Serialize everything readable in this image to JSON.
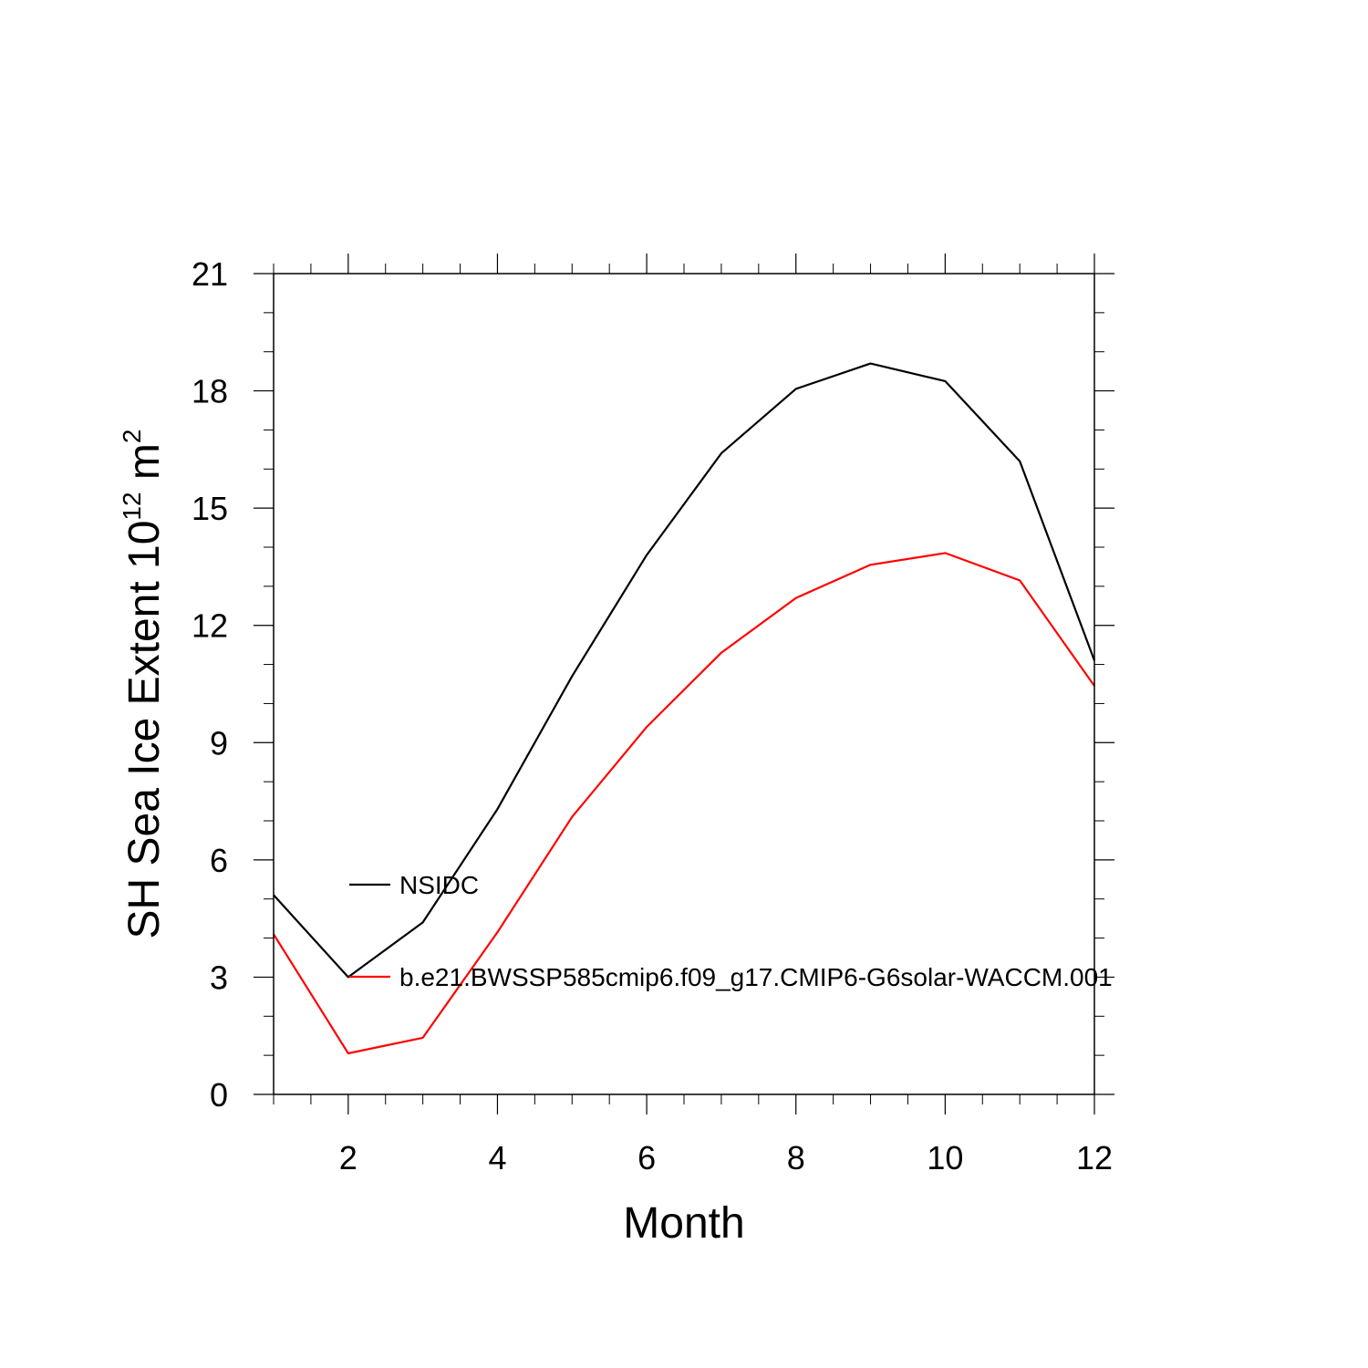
{
  "chart_data": {
    "type": "line",
    "xlabel": "Month",
    "ylabel": {
      "main": "SH Sea Ice Extent 10",
      "exp1": "12",
      "unit": " m",
      "exp2": "2"
    },
    "xlim": [
      1,
      12
    ],
    "ylim": [
      0,
      21
    ],
    "x_ticks": [
      2,
      4,
      6,
      8,
      10,
      12
    ],
    "y_ticks": [
      0,
      3,
      6,
      9,
      12,
      15,
      18,
      21
    ],
    "x": [
      1,
      2,
      3,
      4,
      5,
      6,
      7,
      8,
      9,
      10,
      11,
      12
    ],
    "series": [
      {
        "name": "NSIDC",
        "color": "#000000",
        "values": [
          5.1,
          3.0,
          4.4,
          7.3,
          10.7,
          13.8,
          16.4,
          18.05,
          18.7,
          18.25,
          16.2,
          11.1
        ]
      },
      {
        "name": "b.e21.BWSSP585cmip6.f09_g17.CMIP6-G6solar-WACCM.001",
        "color": "#ff0000",
        "values": [
          4.1,
          1.05,
          1.45,
          4.15,
          7.1,
          9.4,
          11.3,
          12.7,
          13.55,
          13.85,
          13.15,
          10.45
        ]
      }
    ],
    "grid": false,
    "legend": "inside-left"
  }
}
